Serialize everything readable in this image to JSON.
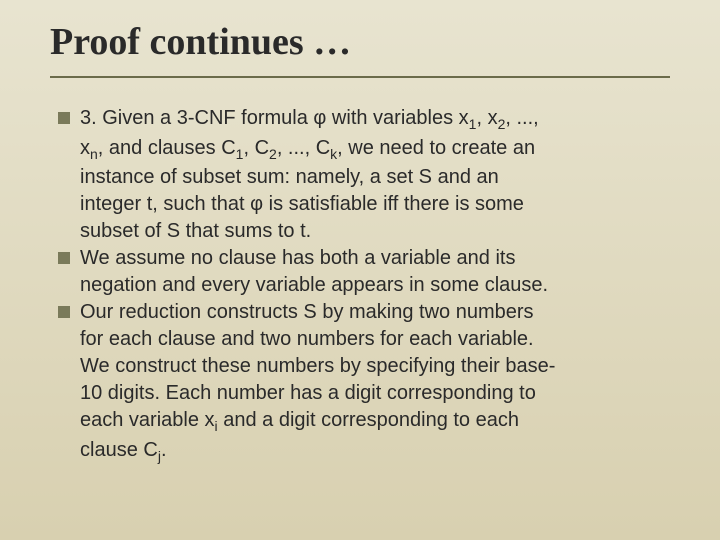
{
  "slide": {
    "title": "Proof continues …",
    "bullets": [
      {
        "line1": "3. Given a 3-CNF formula φ with variables x",
        "sub1": "1",
        "mid1": ", x",
        "sub2": "2",
        "mid2": ", ...,",
        "cont1_a": "x",
        "cont1_sub1": "n",
        "cont1_b": ", and clauses C",
        "cont1_sub2": "1",
        "cont1_c": ", C",
        "cont1_sub3": "2",
        "cont1_d": ", ..., C",
        "cont1_sub4": "k",
        "cont1_e": ", we need to create an",
        "cont2": "instance of subset sum: namely, a set S and an",
        "cont3": "integer t, such that φ is satisfiable iff there is some",
        "cont4": "subset of S that sums to t."
      },
      {
        "line1": "We assume no clause has both a variable and its",
        "cont1": "negation and every variable appears in some clause."
      },
      {
        "line1": "Our reduction constructs S by making two numbers",
        "cont1": "for each clause and two numbers for each variable.",
        "cont2": "We construct these numbers by specifying their base-",
        "cont3": "10 digits. Each number has a digit corresponding to",
        "cont4_a": "each variable x",
        "cont4_sub1": "i",
        "cont4_b": " and a digit corresponding to each",
        "cont5_a": "clause C",
        "cont5_sub1": "j",
        "cont5_b": "."
      }
    ]
  }
}
